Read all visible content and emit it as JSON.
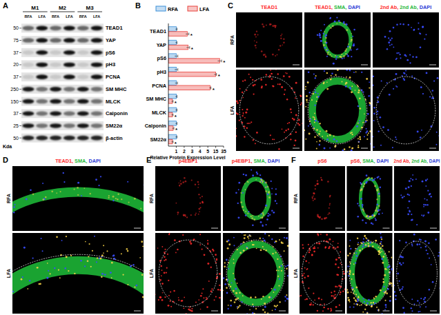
{
  "panels": {
    "A": {
      "label": "A",
      "groups": [
        "M1",
        "M2",
        "M3"
      ],
      "lanes": [
        "RFA",
        "LFA"
      ],
      "rows": [
        {
          "protein": "TEAD1",
          "kda": 50
        },
        {
          "protein": "YAP",
          "kda": 75
        },
        {
          "protein": "pS6",
          "kda": 37
        },
        {
          "protein": "pH3",
          "kda": 20
        },
        {
          "protein": "PCNA",
          "kda": 37
        },
        {
          "protein": "SM MHC",
          "kda": 250
        },
        {
          "protein": "MLCK",
          "kda": 150
        },
        {
          "protein": "Calponin",
          "kda": 37
        },
        {
          "protein": "SM22α",
          "kda": 25
        },
        {
          "protein": "β-actin",
          "kda": 50
        }
      ],
      "unit": "Kda"
    },
    "B": {
      "label": "B"
    },
    "C": {
      "label": "C",
      "rows": [
        "RFA",
        "LFA"
      ],
      "columns": [
        {
          "title": [
            {
              "text": "TEAD1",
              "color": "#ff2a2a"
            }
          ]
        },
        {
          "title": [
            {
              "text": "TEAD1,",
              "color": "#ff2a2a"
            },
            {
              "text": " SMA,",
              "color": "#1fb83a"
            },
            {
              "text": " DAPI",
              "color": "#2b3bd6"
            }
          ]
        },
        {
          "title": [
            {
              "text": "2nd Ab,",
              "color": "#ff2a2a"
            },
            {
              "text": " 2nd Ab,",
              "color": "#1fb83a"
            },
            {
              "text": " DAPI",
              "color": "#2b3bd6"
            }
          ]
        }
      ]
    },
    "D": {
      "label": "D",
      "rows": [
        "RFA",
        "LFA"
      ],
      "columns": [
        {
          "title": [
            {
              "text": "TEAD1,",
              "color": "#ff2a2a"
            },
            {
              "text": " SMA,",
              "color": "#1fb83a"
            },
            {
              "text": " DAPI",
              "color": "#2b3bd6"
            }
          ]
        }
      ]
    },
    "E": {
      "label": "E",
      "rows": [
        "RFA",
        "LFA"
      ],
      "columns": [
        {
          "title": [
            {
              "text": "p4EBP1",
              "color": "#ff2a2a"
            }
          ]
        },
        {
          "title": [
            {
              "text": "p4EBP1,",
              "color": "#ff2a2a"
            },
            {
              "text": " SMA,",
              "color": "#1fb83a"
            },
            {
              "text": " DAPI",
              "color": "#2b3bd6"
            }
          ]
        }
      ]
    },
    "F": {
      "label": "F",
      "rows": [
        "RFA",
        "LFA"
      ],
      "columns": [
        {
          "title": [
            {
              "text": "pS6",
              "color": "#ff2a2a"
            }
          ]
        },
        {
          "title": [
            {
              "text": "pS6,",
              "color": "#ff2a2a"
            },
            {
              "text": " SMA,",
              "color": "#1fb83a"
            },
            {
              "text": " DAPI",
              "color": "#2b3bd6"
            }
          ]
        },
        {
          "title": [
            {
              "text": "2nd Ab,",
              "color": "#ff2a2a"
            },
            {
              "text": " 2nd Ab,",
              "color": "#1fb83a"
            },
            {
              "text": " DAPI",
              "color": "#2b3bd6"
            }
          ]
        }
      ]
    }
  },
  "chart_data": {
    "type": "bar",
    "orientation": "horizontal",
    "legend": "top",
    "categories": [
      "TEAD1",
      "YAP",
      "pS6",
      "pH3",
      "PCNA",
      "SM MHC",
      "MLCK",
      "Calponin",
      "SM22α"
    ],
    "series": [
      {
        "name": "RFA",
        "color": "#3a8fd8",
        "values": [
          1,
          1,
          1,
          1,
          1,
          1,
          1,
          1,
          1
        ],
        "errors": [
          0.1,
          0.1,
          0.2,
          0.2,
          0.15,
          0.1,
          0.1,
          0.1,
          0.1
        ]
      },
      {
        "name": "LFA",
        "color": "#e8403a",
        "values": [
          2.4,
          2.5,
          25,
          15,
          8,
          0.5,
          0.5,
          0.6,
          0.5
        ],
        "errors": [
          0.2,
          0.2,
          5,
          2,
          1,
          0.1,
          0.1,
          0.1,
          0.1
        ],
        "significance": [
          "*",
          "*",
          "*",
          "*",
          "*",
          "*",
          "*",
          "*",
          "*"
        ]
      }
    ],
    "x_label": "Relative Protein Expression Level",
    "xlim": [
      0,
      35
    ],
    "xticks": [
      1,
      2,
      3,
      4,
      5,
      15,
      35
    ],
    "grid": false
  }
}
